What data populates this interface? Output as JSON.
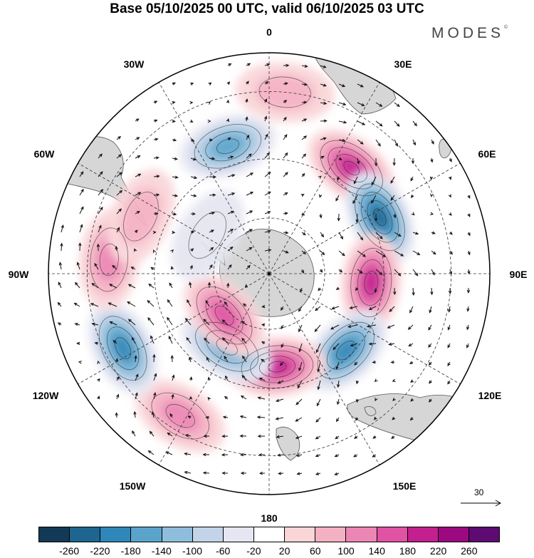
{
  "title": "Base 05/10/2025 00 UTC, valid 06/10/2025 03 UTC",
  "brand": {
    "name": "MODES",
    "mark": "©"
  },
  "longitude_labels": {
    "n0": "0",
    "n30e": "30E",
    "n60e": "60E",
    "n90e": "90E",
    "n120e": "120E",
    "n150e": "150E",
    "n180": "180",
    "n150w": "150W",
    "n120w": "120W",
    "n90w": "90W",
    "n60w": "60W",
    "n30w": "30W"
  },
  "reference_vector": {
    "label": "30"
  },
  "colorbar": {
    "colors": [
      "#123a57",
      "#1e6590",
      "#2f86b8",
      "#5aa4cc",
      "#8fbedc",
      "#c3d4e8",
      "#e6e6f2",
      "#ffffff",
      "#f9d5d8",
      "#f5b1c4",
      "#ec86b4",
      "#e052a2",
      "#c41f8e",
      "#9c087f",
      "#5d0b73"
    ],
    "ticks": [
      "-260",
      "-220",
      "-180",
      "-140",
      "-100",
      "-60",
      "-20",
      "20",
      "60",
      "100",
      "140",
      "180",
      "220",
      "260"
    ]
  },
  "map": {
    "anomaly_cells": [
      {
        "name": "anomaly-neg-south-atlantic",
        "value": -150,
        "lon": -18,
        "colat": 46
      },
      {
        "name": "anomaly-pos-south-africa",
        "value": 210,
        "lon": 38,
        "colat": 46
      },
      {
        "name": "anomaly-neg-indian-ocean",
        "value": -250,
        "lon": 63,
        "colat": 43
      },
      {
        "name": "anomaly-pos-south-indian",
        "value": 200,
        "lon": 95,
        "colat": 36
      },
      {
        "name": "anomaly-neg-south-australia",
        "value": -180,
        "lon": 135,
        "colat": 38
      },
      {
        "name": "anomaly-pos-tasman",
        "value": 210,
        "lon": 175,
        "colat": 33
      },
      {
        "name": "anomaly-neg-south-pacific",
        "value": -170,
        "lon": -150,
        "colat": 30
      },
      {
        "name": "anomaly-pos-ross",
        "value": 160,
        "lon": -133,
        "colat": 22
      },
      {
        "name": "anomaly-pos-pacific-north",
        "value": 110,
        "lon": -148,
        "colat": 56
      },
      {
        "name": "anomaly-neg-east-pacific",
        "value": -180,
        "lon": -117,
        "colat": 55
      },
      {
        "name": "anomaly-pos-southeast-pacific",
        "value": 120,
        "lon": -85,
        "colat": 54
      },
      {
        "name": "anomaly-pos-drake",
        "value": 80,
        "lon": -66,
        "colat": 48
      },
      {
        "name": "anomaly-neg-weddell",
        "value": -40,
        "lon": -58,
        "colat": 26
      },
      {
        "name": "anomaly-pos-atlantic-north",
        "value": 60,
        "lon": 5,
        "colat": 60
      }
    ]
  }
}
